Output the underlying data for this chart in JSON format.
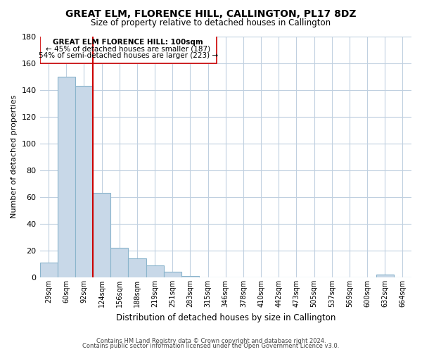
{
  "title": "GREAT ELM, FLORENCE HILL, CALLINGTON, PL17 8DZ",
  "subtitle": "Size of property relative to detached houses in Callington",
  "xlabel": "Distribution of detached houses by size in Callington",
  "ylabel": "Number of detached properties",
  "bar_labels": [
    "29sqm",
    "60sqm",
    "92sqm",
    "124sqm",
    "156sqm",
    "188sqm",
    "219sqm",
    "251sqm",
    "283sqm",
    "315sqm",
    "346sqm",
    "378sqm",
    "410sqm",
    "442sqm",
    "473sqm",
    "505sqm",
    "537sqm",
    "569sqm",
    "600sqm",
    "632sqm",
    "664sqm"
  ],
  "bar_values": [
    11,
    150,
    143,
    63,
    22,
    14,
    9,
    4,
    1,
    0,
    0,
    0,
    0,
    0,
    0,
    0,
    0,
    0,
    0,
    2,
    0
  ],
  "bar_color": "#c8d8e8",
  "bar_edge_color": "#8ab4cc",
  "vline_x_index": 2,
  "vline_color": "#cc0000",
  "annotation_title": "GREAT ELM FLORENCE HILL: 100sqm",
  "annotation_line1": "← 45% of detached houses are smaller (187)",
  "annotation_line2": "54% of semi-detached houses are larger (223) →",
  "ylim": [
    0,
    180
  ],
  "yticks": [
    0,
    20,
    40,
    60,
    80,
    100,
    120,
    140,
    160,
    180
  ],
  "footer1": "Contains HM Land Registry data © Crown copyright and database right 2024.",
  "footer2": "Contains public sector information licensed under the Open Government Licence v3.0.",
  "bg_color": "#ffffff",
  "grid_color": "#c0d0e0"
}
